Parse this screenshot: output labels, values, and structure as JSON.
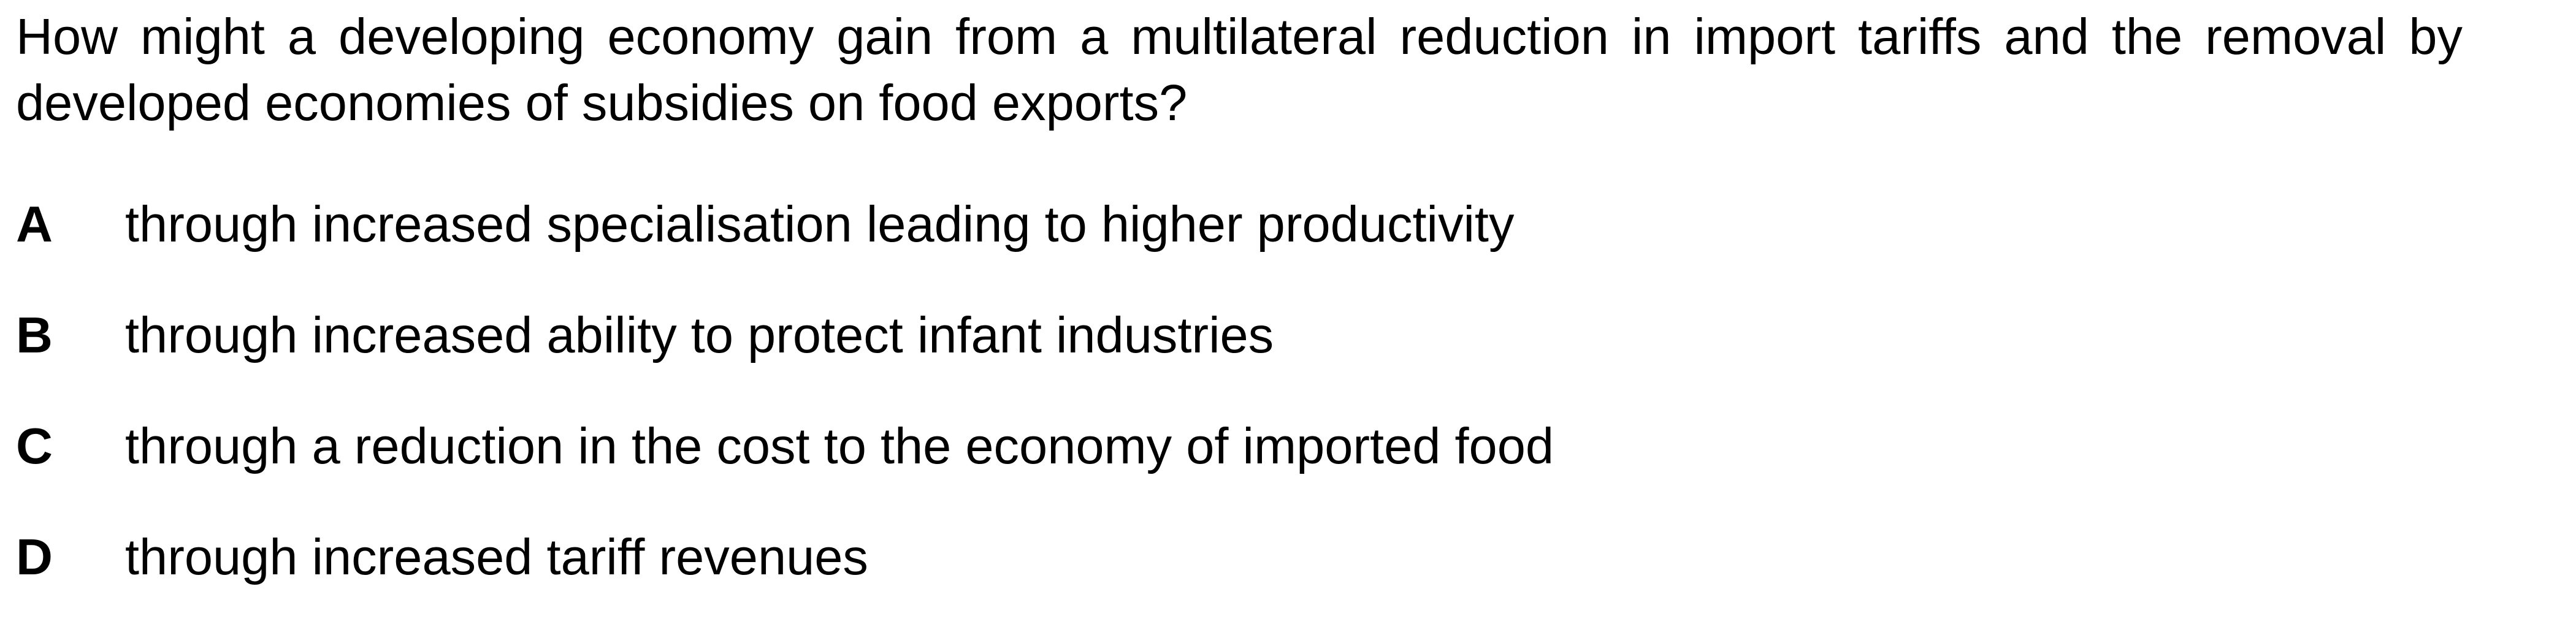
{
  "question": {
    "text": "How might a developing economy gain from a multilateral reduction in import tariffs and the removal by developed economies of subsidies on food exports?"
  },
  "options": [
    {
      "letter": "A",
      "text": "through increased specialisation leading to higher productivity"
    },
    {
      "letter": "B",
      "text": "through increased ability to protect infant industries"
    },
    {
      "letter": "C",
      "text": "through a reduction in the cost to the economy of imported food"
    },
    {
      "letter": "D",
      "text": "through increased tariff revenues"
    }
  ]
}
